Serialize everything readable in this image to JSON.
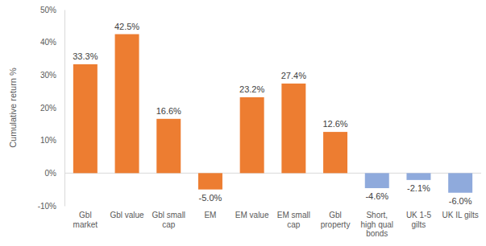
{
  "chart_data": {
    "type": "bar",
    "ylabel": "Cumulative return %",
    "categories": [
      "Gbl market",
      "Gbl value",
      "Gbl small cap",
      "EM",
      "EM value",
      "EM small cap",
      "Gbl property",
      "Short, high qual bonds",
      "UK 1-5 gilts",
      "UK IL gilts"
    ],
    "values": [
      33.3,
      42.5,
      16.6,
      -5.0,
      23.2,
      27.4,
      12.6,
      -4.6,
      -2.1,
      -6.0
    ],
    "value_labels": [
      "33.3%",
      "42.5%",
      "16.6%",
      "-5.0%",
      "23.2%",
      "27.4%",
      "12.6%",
      "-4.6%",
      "-2.1%",
      "-6.0%"
    ],
    "colors": [
      "#ed7d31",
      "#ed7d31",
      "#ed7d31",
      "#ed7d31",
      "#ed7d31",
      "#ed7d31",
      "#ed7d31",
      "#8faadc",
      "#8faadc",
      "#8faadc"
    ],
    "ylim": [
      -10,
      50
    ],
    "yticks": [
      {
        "value": -10,
        "label": "-10%"
      },
      {
        "value": 0,
        "label": "0%"
      },
      {
        "value": 10,
        "label": "10%"
      },
      {
        "value": 20,
        "label": "20%"
      },
      {
        "value": 30,
        "label": "30%"
      },
      {
        "value": 40,
        "label": "40%"
      },
      {
        "value": 50,
        "label": "50%"
      }
    ],
    "grid": false,
    "data_labels": true
  }
}
